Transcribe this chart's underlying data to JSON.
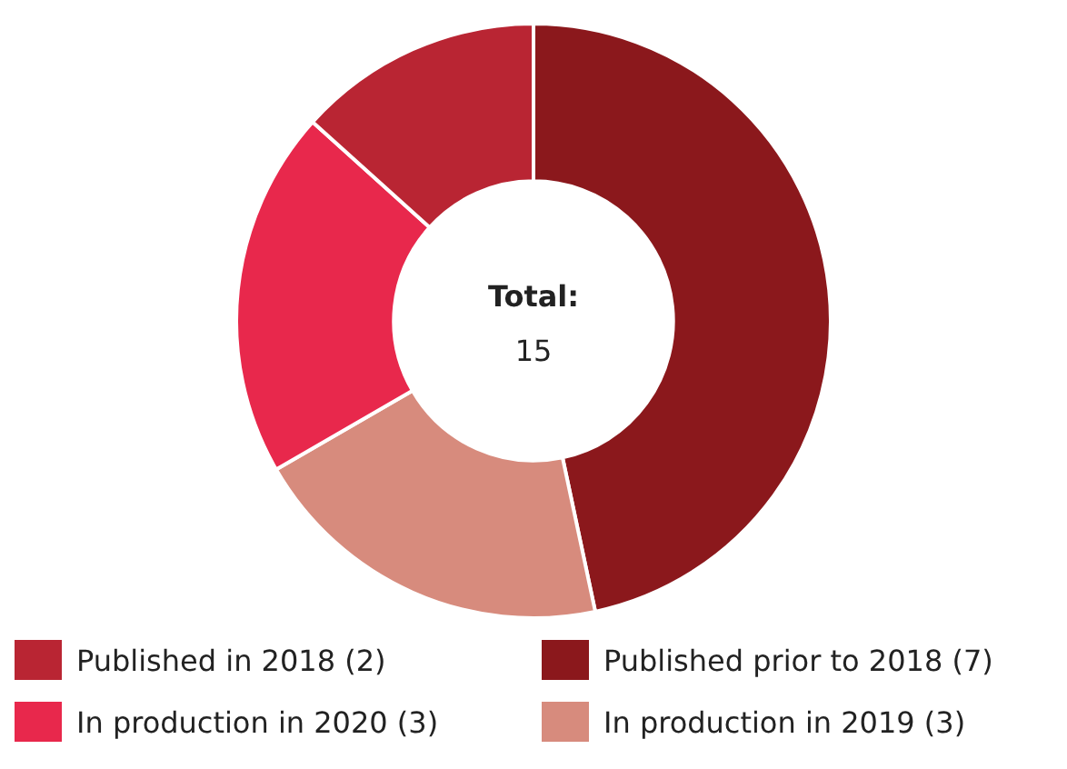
{
  "chart_data": {
    "type": "donut",
    "categories": [
      "Published prior to 2018 (7)",
      "In production in 2019 (3)",
      "In production in 2020 (3)",
      "Published in 2018 (2)"
    ],
    "values": [
      7,
      3,
      3,
      2
    ],
    "colors": [
      "#8b181c",
      "#d78b7d",
      "#e8284c",
      "#b92533"
    ],
    "annotations": [
      "Total:",
      "15"
    ],
    "legend": "bottom"
  }
}
